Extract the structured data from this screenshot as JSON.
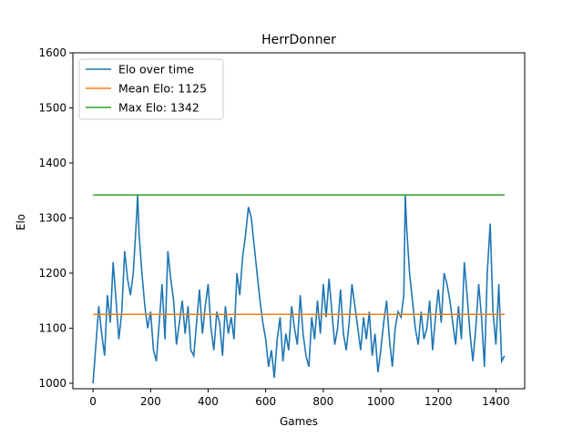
{
  "chart_data": {
    "type": "line",
    "title": "HerrDonner",
    "xlabel": "Games",
    "ylabel": "Elo",
    "xlim": [
      -70,
      1500
    ],
    "ylim": [
      990,
      1600
    ],
    "xticks": [
      0,
      200,
      400,
      600,
      800,
      1000,
      1200,
      1400
    ],
    "yticks": [
      1000,
      1100,
      1200,
      1300,
      1400,
      1500,
      1600
    ],
    "grid": false,
    "legend_position": "top-left",
    "colors": {
      "elo": "#1f77b4",
      "mean": "#ff7f0e",
      "max": "#2ca02c"
    },
    "series": [
      {
        "name": "Elo over time",
        "key": "elo",
        "x": [
          0,
          10,
          20,
          30,
          40,
          50,
          60,
          70,
          80,
          90,
          100,
          110,
          120,
          130,
          140,
          150,
          155,
          160,
          170,
          180,
          190,
          200,
          210,
          220,
          230,
          240,
          250,
          260,
          270,
          280,
          290,
          300,
          310,
          320,
          330,
          340,
          350,
          360,
          370,
          380,
          390,
          400,
          410,
          420,
          430,
          440,
          450,
          460,
          470,
          480,
          490,
          500,
          510,
          520,
          530,
          540,
          550,
          560,
          570,
          580,
          590,
          600,
          610,
          620,
          630,
          640,
          650,
          660,
          670,
          680,
          690,
          700,
          710,
          720,
          730,
          740,
          750,
          760,
          770,
          780,
          790,
          800,
          810,
          820,
          830,
          840,
          850,
          860,
          870,
          880,
          890,
          900,
          910,
          920,
          930,
          940,
          950,
          960,
          970,
          980,
          990,
          1000,
          1010,
          1020,
          1030,
          1040,
          1050,
          1060,
          1070,
          1080,
          1085,
          1090,
          1100,
          1110,
          1120,
          1130,
          1140,
          1150,
          1160,
          1170,
          1180,
          1190,
          1200,
          1210,
          1220,
          1230,
          1240,
          1250,
          1260,
          1270,
          1280,
          1290,
          1300,
          1310,
          1320,
          1330,
          1340,
          1350,
          1360,
          1370,
          1380,
          1390,
          1400,
          1410,
          1420,
          1430
        ],
        "y": [
          1000,
          1070,
          1140,
          1090,
          1050,
          1160,
          1110,
          1220,
          1150,
          1080,
          1130,
          1240,
          1190,
          1160,
          1200,
          1290,
          1342,
          1270,
          1200,
          1140,
          1100,
          1130,
          1060,
          1040,
          1110,
          1180,
          1080,
          1240,
          1190,
          1150,
          1070,
          1110,
          1150,
          1090,
          1140,
          1060,
          1050,
          1110,
          1170,
          1090,
          1140,
          1180,
          1100,
          1060,
          1130,
          1110,
          1050,
          1140,
          1090,
          1120,
          1080,
          1200,
          1160,
          1230,
          1270,
          1320,
          1300,
          1250,
          1200,
          1150,
          1110,
          1080,
          1030,
          1060,
          1010,
          1080,
          1120,
          1040,
          1090,
          1060,
          1140,
          1100,
          1070,
          1160,
          1090,
          1050,
          1030,
          1120,
          1080,
          1150,
          1090,
          1180,
          1120,
          1190,
          1130,
          1070,
          1100,
          1170,
          1090,
          1060,
          1110,
          1180,
          1140,
          1100,
          1060,
          1120,
          1080,
          1130,
          1050,
          1090,
          1020,
          1060,
          1110,
          1150,
          1080,
          1030,
          1100,
          1130,
          1120,
          1160,
          1342,
          1280,
          1200,
          1150,
          1100,
          1070,
          1130,
          1080,
          1100,
          1150,
          1060,
          1120,
          1170,
          1110,
          1200,
          1180,
          1150,
          1110,
          1070,
          1140,
          1080,
          1220,
          1160,
          1090,
          1040,
          1100,
          1180,
          1120,
          1030,
          1200,
          1290,
          1130,
          1070,
          1180,
          1040,
          1050
        ]
      },
      {
        "name": "Mean Elo: 1125",
        "key": "mean",
        "x": [
          0,
          1430
        ],
        "y": [
          1125,
          1125
        ]
      },
      {
        "name": "Max Elo: 1342",
        "key": "max",
        "x": [
          0,
          1430
        ],
        "y": [
          1342,
          1342
        ]
      }
    ]
  }
}
